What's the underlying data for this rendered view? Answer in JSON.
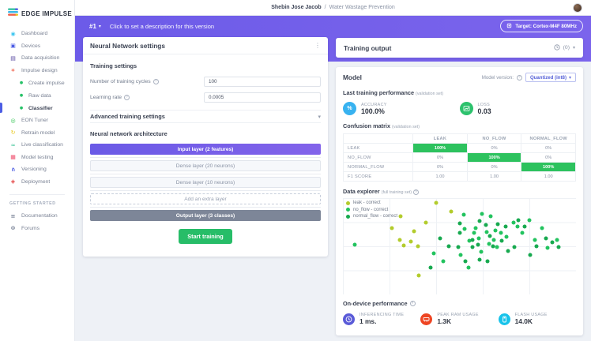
{
  "header": {
    "user": "Shebin Jose Jacob",
    "separator": "/",
    "project": "Water Wastage Prevention"
  },
  "logo": {
    "text": "EDGE IMPULSE"
  },
  "sidebar": {
    "items_top": [
      {
        "label": "Dashboard",
        "icon": "dashboard-icon",
        "icon_style": "color:#3fc6f0"
      },
      {
        "label": "Devices",
        "icon": "devices-icon",
        "icon_style": "color:#4c5de4"
      },
      {
        "label": "Data acquisition",
        "icon": "data-acquisition-icon",
        "icon_style": "color:#5646a0"
      },
      {
        "label": "Impulse design",
        "icon": "impulse-design-icon",
        "icon_style": "color:#f0604a"
      }
    ],
    "impulse_sub": [
      {
        "label": "Create impulse",
        "active": false
      },
      {
        "label": "Raw data",
        "active": false
      },
      {
        "label": "Classifier",
        "active": true
      }
    ],
    "items_bottom": [
      {
        "label": "EON Tuner",
        "icon": "eon-tuner-icon",
        "icon_style": "color:#2bc24c"
      },
      {
        "label": "Retrain model",
        "icon": "retrain-model-icon",
        "icon_style": "color:#e8c718"
      },
      {
        "label": "Live classification",
        "icon": "live-classification-icon",
        "icon_style": "color:#2fbf8f"
      },
      {
        "label": "Model testing",
        "icon": "model-testing-icon",
        "icon_style": "color:#ee4b6a"
      },
      {
        "label": "Versioning",
        "icon": "versioning-icon",
        "icon_style": "color:#3d4fe0"
      },
      {
        "label": "Deployment",
        "icon": "deployment-icon",
        "icon_style": "color:#e23c3c"
      }
    ],
    "section_label": "GETTING STARTED",
    "getting_started": [
      {
        "label": "Documentation",
        "icon": "documentation-icon",
        "icon_style": "color:#55607a"
      },
      {
        "label": "Forums",
        "icon": "forums-icon",
        "icon_style": "color:#55607a"
      }
    ]
  },
  "banner": {
    "version": "#1",
    "description": "Click to set a description for this version",
    "target_button": "Target: Cortex-M4F 80MHz"
  },
  "nn_panel": {
    "title": "Neural Network settings",
    "training_settings_label": "Training settings",
    "fields": [
      {
        "label": "Number of training cycles",
        "value": "100"
      },
      {
        "label": "Learning rate",
        "value": "0.0005"
      }
    ],
    "advanced_label": "Advanced training settings",
    "architecture_label": "Neural network architecture",
    "layers": [
      {
        "label": "Input layer (2 features)",
        "type": "input"
      },
      {
        "label": "Dense layer (20 neurons)",
        "type": "dense"
      },
      {
        "label": "Dense layer (10 neurons)",
        "type": "dense"
      },
      {
        "label": "Add an extra layer",
        "type": "add"
      },
      {
        "label": "Output layer (3 classes)",
        "type": "output"
      }
    ],
    "start_button": "Start training"
  },
  "training_output": {
    "title": "Training output",
    "jobs_count": "(0)"
  },
  "model_panel": {
    "title": "Model",
    "model_version_label": "Model version:",
    "model_version_value": "Quantized (int8)",
    "last_training_label": "Last training performance",
    "last_training_suffix": "(validation set)",
    "metrics": [
      {
        "label": "ACCURACY",
        "value": "100.0%"
      },
      {
        "label": "LOSS",
        "value": "0.03"
      }
    ],
    "confusion_label": "Confusion matrix",
    "confusion_suffix": "(validation set)",
    "data_explorer_label": "Data explorer",
    "data_explorer_suffix": "(full training set)",
    "on_device_label": "On-device performance",
    "device_metrics": [
      {
        "label": "INFERENCING TIME",
        "value": "1 ms."
      },
      {
        "label": "PEAK RAM USAGE",
        "value": "1.3K"
      },
      {
        "label": "FLASH USAGE",
        "value": "14.0K"
      }
    ]
  },
  "colors": {
    "banner_purple": "#6c5be8",
    "primary_indigo": "#4c5de4",
    "success_green": "#27bd68",
    "matrix_green": "#2dc25e",
    "accuracy_blue": "#38b2f0",
    "loss_green": "#2dc26d",
    "inferencing_indigo": "#5a5bd8",
    "ram_red": "#ee4523",
    "flash_cyan": "#18c3ea"
  },
  "chart_data": [
    {
      "type": "table",
      "title": "Confusion matrix (validation set)",
      "columns": [
        "",
        "LEAK",
        "NO_FLOW",
        "NORMAL_FLOW"
      ],
      "rows": [
        [
          "LEAK",
          "100%",
          "0%",
          "0%"
        ],
        [
          "NO_FLOW",
          "0%",
          "100%",
          "0%"
        ],
        [
          "NORMAL_FLOW",
          "0%",
          "0%",
          "100%"
        ],
        [
          "F1 SCORE",
          "1.00",
          "1.00",
          "1.00"
        ]
      ],
      "highlight_color": "#2dc25e"
    },
    {
      "type": "scatter",
      "title": "Data explorer (full training set)",
      "legend": [
        "leak - correct",
        "no_flow - correct",
        "normal_flow - correct"
      ],
      "grid": true,
      "axis_units": "percent-of-plot",
      "series": [
        {
          "name": "leak - correct",
          "color": "#b3cc2c",
          "points": [
            [
              39.9,
              4.8
            ],
            [
              46.4,
              13.6
            ],
            [
              24.7,
              19.2
            ],
            [
              21.1,
              31.2
            ],
            [
              30.5,
              34.4
            ],
            [
              35.7,
              25.6
            ],
            [
              24.4,
              43.2
            ],
            [
              29.2,
              44.8
            ],
            [
              26.0,
              48.8
            ],
            [
              32.1,
              49.6
            ],
            [
              32.5,
              80.0
            ]
          ]
        },
        {
          "name": "no_flow - correct",
          "color": "#22c35e",
          "points": [
            [
              5.2,
              48.0
            ],
            [
              51.9,
              17.6
            ],
            [
              52.3,
              32.0
            ],
            [
              54.2,
              44.0
            ],
            [
              50.6,
              59.2
            ],
            [
              53.9,
              72.0
            ],
            [
              56.2,
              36.0
            ],
            [
              57.1,
              31.2
            ],
            [
              59.7,
              16.8
            ],
            [
              58.4,
              41.6
            ],
            [
              59.4,
              56.0
            ],
            [
              61.7,
              35.2
            ],
            [
              63.3,
              19.2
            ],
            [
              62.7,
              47.2
            ],
            [
              64.9,
              43.2
            ],
            [
              65.3,
              33.6
            ],
            [
              66.2,
              51.2
            ],
            [
              67.9,
              36.0
            ],
            [
              70.1,
              40.0
            ],
            [
              73.1,
              25.6
            ],
            [
              75.0,
              29.6
            ],
            [
              77.0,
              36.0
            ],
            [
              79.9,
              23.2
            ],
            [
              82.5,
              43.2
            ],
            [
              85.4,
              31.2
            ],
            [
              87.7,
              52.0
            ],
            [
              91.9,
              43.2
            ],
            [
              39.0,
              57.6
            ],
            [
              43.2,
              65.6
            ]
          ]
        },
        {
          "name": "normal_flow - correct",
          "color": "#17a94f",
          "points": [
            [
              50.3,
              26.4
            ],
            [
              50.0,
              36.0
            ],
            [
              49.4,
              51.2
            ],
            [
              52.6,
              65.6
            ],
            [
              55.5,
              43.2
            ],
            [
              55.5,
              51.2
            ],
            [
              58.8,
              24.0
            ],
            [
              58.1,
              48.0
            ],
            [
              58.8,
              64.0
            ],
            [
              61.4,
              28.0
            ],
            [
              63.0,
              39.2
            ],
            [
              62.0,
              65.6
            ],
            [
              64.3,
              49.6
            ],
            [
              66.6,
              27.2
            ],
            [
              68.2,
              44.0
            ],
            [
              69.8,
              29.6
            ],
            [
              70.8,
              55.2
            ],
            [
              73.4,
              51.2
            ],
            [
              75.3,
              23.2
            ],
            [
              77.9,
              29.6
            ],
            [
              80.5,
              59.2
            ],
            [
              83.1,
              49.6
            ],
            [
              87.0,
              41.6
            ],
            [
              89.9,
              45.6
            ],
            [
              92.5,
              51.2
            ],
            [
              41.6,
              41.6
            ],
            [
              45.5,
              49.6
            ],
            [
              37.7,
              72.0
            ]
          ]
        }
      ]
    }
  ]
}
